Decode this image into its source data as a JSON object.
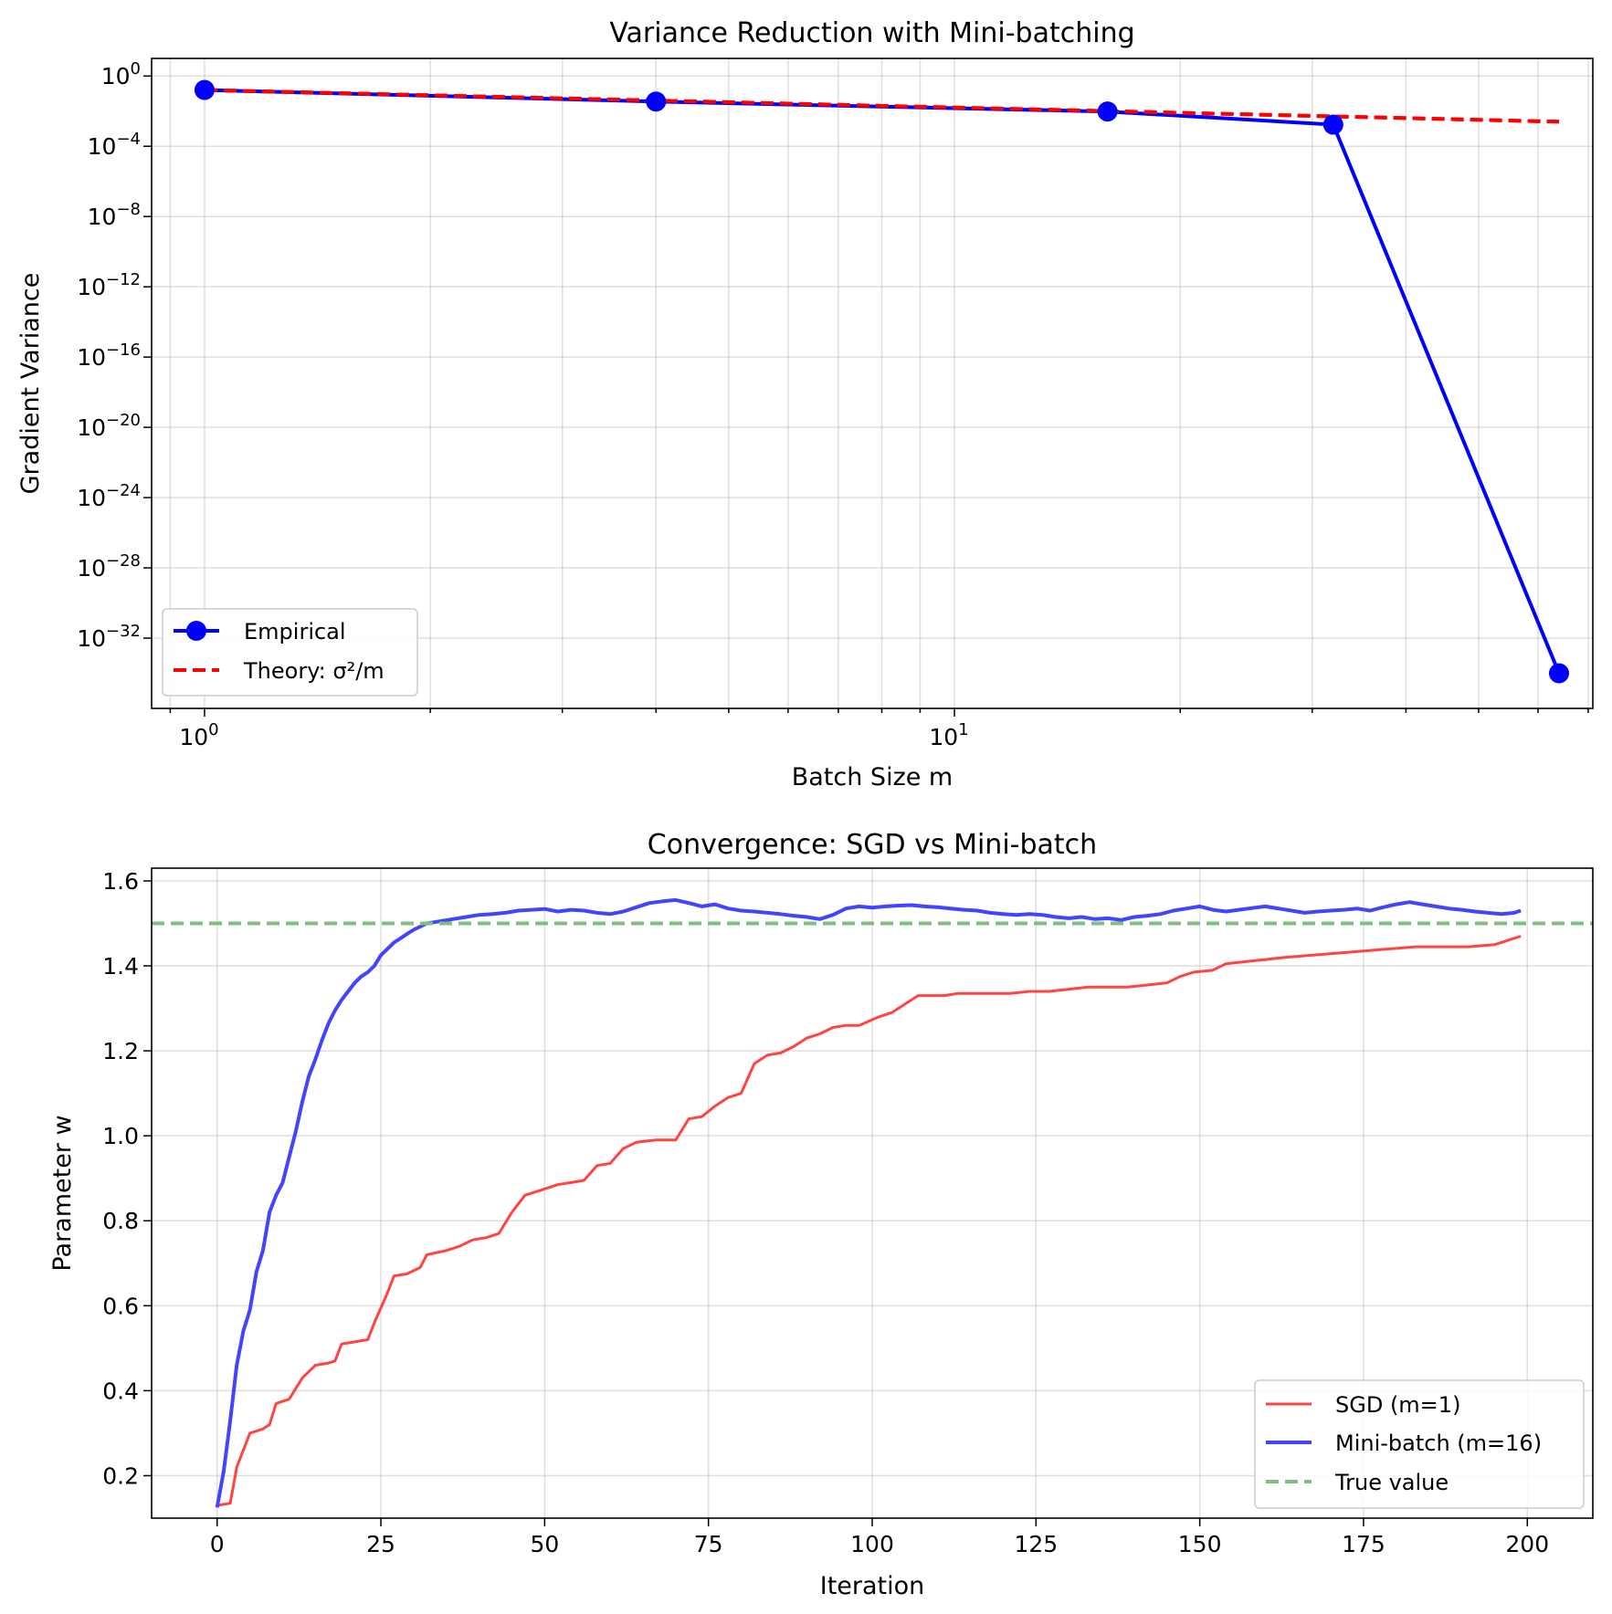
{
  "chart_data": [
    {
      "type": "line",
      "title": "Variance Reduction with Mini-batching",
      "xlabel": "Batch Size m",
      "ylabel": "Gradient Variance",
      "xscale": "log",
      "yscale": "log",
      "xlim": [
        0.85,
        71
      ],
      "ylim": [
        1e-36,
        10.0
      ],
      "x_tick_labels": [
        {
          "value": 1,
          "base": "10",
          "exp": "0"
        },
        {
          "value": 10,
          "base": "10",
          "exp": "1"
        }
      ],
      "y_tick_labels": [
        {
          "value": 1,
          "base": "10",
          "exp": "0"
        },
        {
          "value": 0.0001,
          "base": "10",
          "exp": "−4"
        },
        {
          "value": 1e-08,
          "base": "10",
          "exp": "−8"
        },
        {
          "value": 1e-12,
          "base": "10",
          "exp": "−12"
        },
        {
          "value": 1e-16,
          "base": "10",
          "exp": "−16"
        },
        {
          "value": 1e-20,
          "base": "10",
          "exp": "−20"
        },
        {
          "value": 1e-24,
          "base": "10",
          "exp": "−24"
        },
        {
          "value": 1e-28,
          "base": "10",
          "exp": "−28"
        },
        {
          "value": 1e-32,
          "base": "10",
          "exp": "−32"
        }
      ],
      "grid": true,
      "legend_position": "lower-left",
      "series": [
        {
          "name": "Empirical",
          "color": "#0000ff",
          "style": "solid",
          "marker": "circle",
          "x": [
            1,
            4,
            16,
            32,
            64
          ],
          "y": [
            0.16,
            0.035,
            0.0095,
            0.0017,
            1e-34
          ]
        },
        {
          "name": "Theory: σ²/m",
          "color": "#ff0000",
          "style": "dashed",
          "x": [
            1,
            4,
            16,
            32,
            64
          ],
          "y": [
            0.16,
            0.04,
            0.01,
            0.005,
            0.0025
          ]
        }
      ]
    },
    {
      "type": "line",
      "title": "Convergence: SGD vs Mini-batch",
      "xlabel": "Iteration",
      "ylabel": "Parameter w",
      "xlim": [
        -10,
        210
      ],
      "ylim": [
        0.1,
        1.63
      ],
      "x_ticks": [
        0,
        25,
        50,
        75,
        100,
        125,
        150,
        175,
        200
      ],
      "x_tick_labels": [
        "0",
        "25",
        "50",
        "75",
        "100",
        "125",
        "150",
        "175",
        "200"
      ],
      "y_ticks": [
        0.2,
        0.4,
        0.6,
        0.8,
        1.0,
        1.2,
        1.4,
        1.6
      ],
      "y_tick_labels": [
        "0.2",
        "0.4",
        "0.6",
        "0.8",
        "1.0",
        "1.2",
        "1.4",
        "1.6"
      ],
      "grid": true,
      "legend_position": "lower-right",
      "true_value": 1.5,
      "series": [
        {
          "name": "SGD (m=1)",
          "color": "#ff4444",
          "style": "solid",
          "x": [
            0,
            2,
            3,
            5,
            7,
            8,
            9,
            11,
            13,
            15,
            17,
            18,
            19,
            21,
            23,
            24,
            26,
            27,
            29,
            31,
            32,
            35,
            37,
            39,
            41,
            43,
            45,
            47,
            49,
            52,
            54,
            56,
            58,
            60,
            62,
            64,
            67,
            70,
            72,
            74,
            76,
            78,
            80,
            82,
            84,
            86,
            88,
            90,
            92,
            94,
            96,
            98,
            101,
            103,
            105,
            107,
            109,
            111,
            113,
            115,
            118,
            121,
            124,
            127,
            130,
            133,
            136,
            139,
            142,
            145,
            147,
            149,
            152,
            154,
            157,
            160,
            163,
            167,
            171,
            175,
            179,
            183,
            187,
            191,
            195,
            199
          ],
          "y": [
            0.13,
            0.135,
            0.22,
            0.3,
            0.31,
            0.32,
            0.37,
            0.38,
            0.43,
            0.46,
            0.465,
            0.47,
            0.51,
            0.515,
            0.52,
            0.56,
            0.63,
            0.67,
            0.675,
            0.69,
            0.72,
            0.73,
            0.74,
            0.755,
            0.76,
            0.77,
            0.82,
            0.86,
            0.87,
            0.885,
            0.89,
            0.895,
            0.93,
            0.935,
            0.97,
            0.985,
            0.99,
            0.99,
            1.04,
            1.045,
            1.07,
            1.09,
            1.1,
            1.17,
            1.19,
            1.195,
            1.21,
            1.23,
            1.24,
            1.255,
            1.26,
            1.26,
            1.28,
            1.29,
            1.31,
            1.33,
            1.33,
            1.33,
            1.335,
            1.335,
            1.335,
            1.335,
            1.34,
            1.34,
            1.345,
            1.35,
            1.35,
            1.35,
            1.355,
            1.36,
            1.375,
            1.385,
            1.39,
            1.405,
            1.41,
            1.415,
            1.42,
            1.425,
            1.43,
            1.435,
            1.44,
            1.445,
            1.445,
            1.445,
            1.45,
            1.47
          ]
        },
        {
          "name": "Mini-batch (m=16)",
          "color": "#4444ff",
          "style": "solid",
          "x": [
            0,
            1,
            2,
            3,
            4,
            5,
            6,
            7,
            8,
            9,
            10,
            11,
            12,
            13,
            14,
            15,
            16,
            17,
            18,
            19,
            20,
            21,
            22,
            23,
            24,
            25,
            26,
            27,
            28,
            29,
            30,
            32,
            34,
            36,
            38,
            40,
            42,
            44,
            46,
            48,
            50,
            52,
            54,
            56,
            58,
            60,
            62,
            64,
            66,
            68,
            70,
            72,
            74,
            76,
            78,
            80,
            82,
            84,
            86,
            88,
            90,
            92,
            94,
            96,
            98,
            100,
            102,
            104,
            106,
            108,
            110,
            112,
            114,
            116,
            118,
            120,
            122,
            124,
            126,
            128,
            130,
            132,
            134,
            136,
            138,
            140,
            142,
            144,
            146,
            148,
            150,
            152,
            154,
            156,
            158,
            160,
            162,
            164,
            166,
            168,
            170,
            172,
            174,
            176,
            178,
            180,
            182,
            184,
            186,
            188,
            190,
            192,
            194,
            196,
            198,
            199
          ],
          "y": [
            0.125,
            0.21,
            0.33,
            0.46,
            0.54,
            0.59,
            0.68,
            0.73,
            0.82,
            0.86,
            0.89,
            0.95,
            1.01,
            1.08,
            1.14,
            1.18,
            1.225,
            1.265,
            1.295,
            1.32,
            1.34,
            1.36,
            1.375,
            1.385,
            1.4,
            1.425,
            1.44,
            1.455,
            1.465,
            1.475,
            1.485,
            1.5,
            1.505,
            1.51,
            1.515,
            1.52,
            1.522,
            1.525,
            1.53,
            1.532,
            1.534,
            1.528,
            1.532,
            1.53,
            1.525,
            1.522,
            1.528,
            1.538,
            1.548,
            1.552,
            1.555,
            1.548,
            1.54,
            1.545,
            1.535,
            1.53,
            1.528,
            1.525,
            1.522,
            1.518,
            1.515,
            1.51,
            1.52,
            1.535,
            1.54,
            1.537,
            1.54,
            1.542,
            1.543,
            1.54,
            1.538,
            1.535,
            1.532,
            1.53,
            1.525,
            1.522,
            1.52,
            1.522,
            1.52,
            1.515,
            1.512,
            1.515,
            1.51,
            1.512,
            1.508,
            1.515,
            1.518,
            1.522,
            1.53,
            1.535,
            1.54,
            1.532,
            1.528,
            1.532,
            1.536,
            1.54,
            1.535,
            1.53,
            1.525,
            1.528,
            1.53,
            1.532,
            1.535,
            1.53,
            1.538,
            1.545,
            1.55,
            1.545,
            1.54,
            1.535,
            1.532,
            1.528,
            1.525,
            1.522,
            1.525,
            1.53
          ]
        },
        {
          "name": "True value",
          "color": "#7fbf7f",
          "style": "dashed",
          "constant_y": 1.5
        }
      ]
    }
  ]
}
